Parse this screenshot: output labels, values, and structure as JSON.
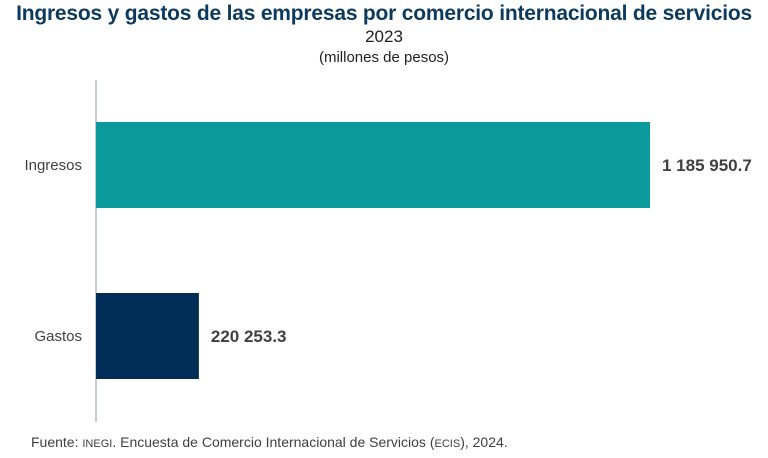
{
  "chart_data": {
    "type": "bar",
    "orientation": "horizontal",
    "title": "Ingresos y gastos de las empresas por comercio internacional de servicios",
    "subtitle": "2023",
    "unit_label": "(millones de pesos)",
    "categories": [
      "Ingresos",
      "Gastos"
    ],
    "values": [
      1185950.7,
      220253.3
    ],
    "data_labels": [
      "1 185 950.7",
      "220 253.3"
    ],
    "colors": [
      "#0a9a9c",
      "#002d56"
    ],
    "xlim": [
      0,
      1400000
    ],
    "grid": false
  },
  "source": {
    "prefix": "Fuente: ",
    "org": "INEGI",
    "middle": ". Encuesta de Comercio Internacional de Servicios (",
    "abbr": "ECIS",
    "suffix": "), 2024."
  }
}
